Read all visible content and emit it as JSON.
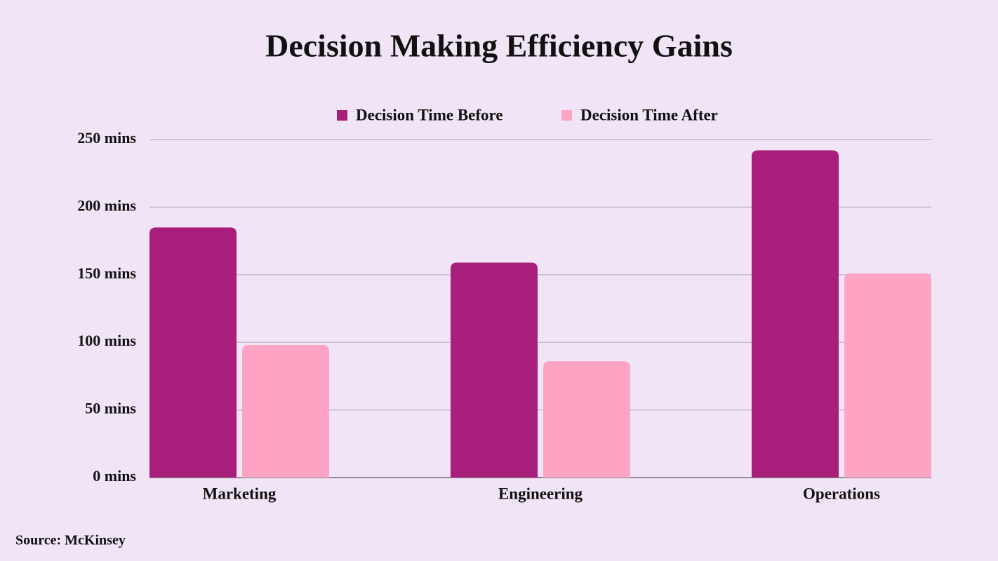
{
  "chart_data": {
    "type": "bar",
    "title": "Decision Making Efficiency Gains",
    "categories": [
      "Marketing",
      "Engineering",
      "Operations"
    ],
    "series": [
      {
        "name": "Decision Time Before",
        "color": "#a71e7b",
        "values": [
          185,
          159,
          242
        ]
      },
      {
        "name": "Decision Time After",
        "color": "#fda4c5",
        "values": [
          98,
          86,
          151
        ]
      }
    ],
    "ylim": [
      0,
      250
    ],
    "yticks": [
      {
        "value": 0,
        "label": "0 mins"
      },
      {
        "value": 50,
        "label": "50 mins"
      },
      {
        "value": 100,
        "label": "100 mins"
      },
      {
        "value": 150,
        "label": "150 mins"
      },
      {
        "value": 200,
        "label": "200 mins"
      },
      {
        "value": 250,
        "label": "250 mins"
      }
    ],
    "grid": true,
    "legend": "top",
    "source": "Source: McKinsey"
  }
}
